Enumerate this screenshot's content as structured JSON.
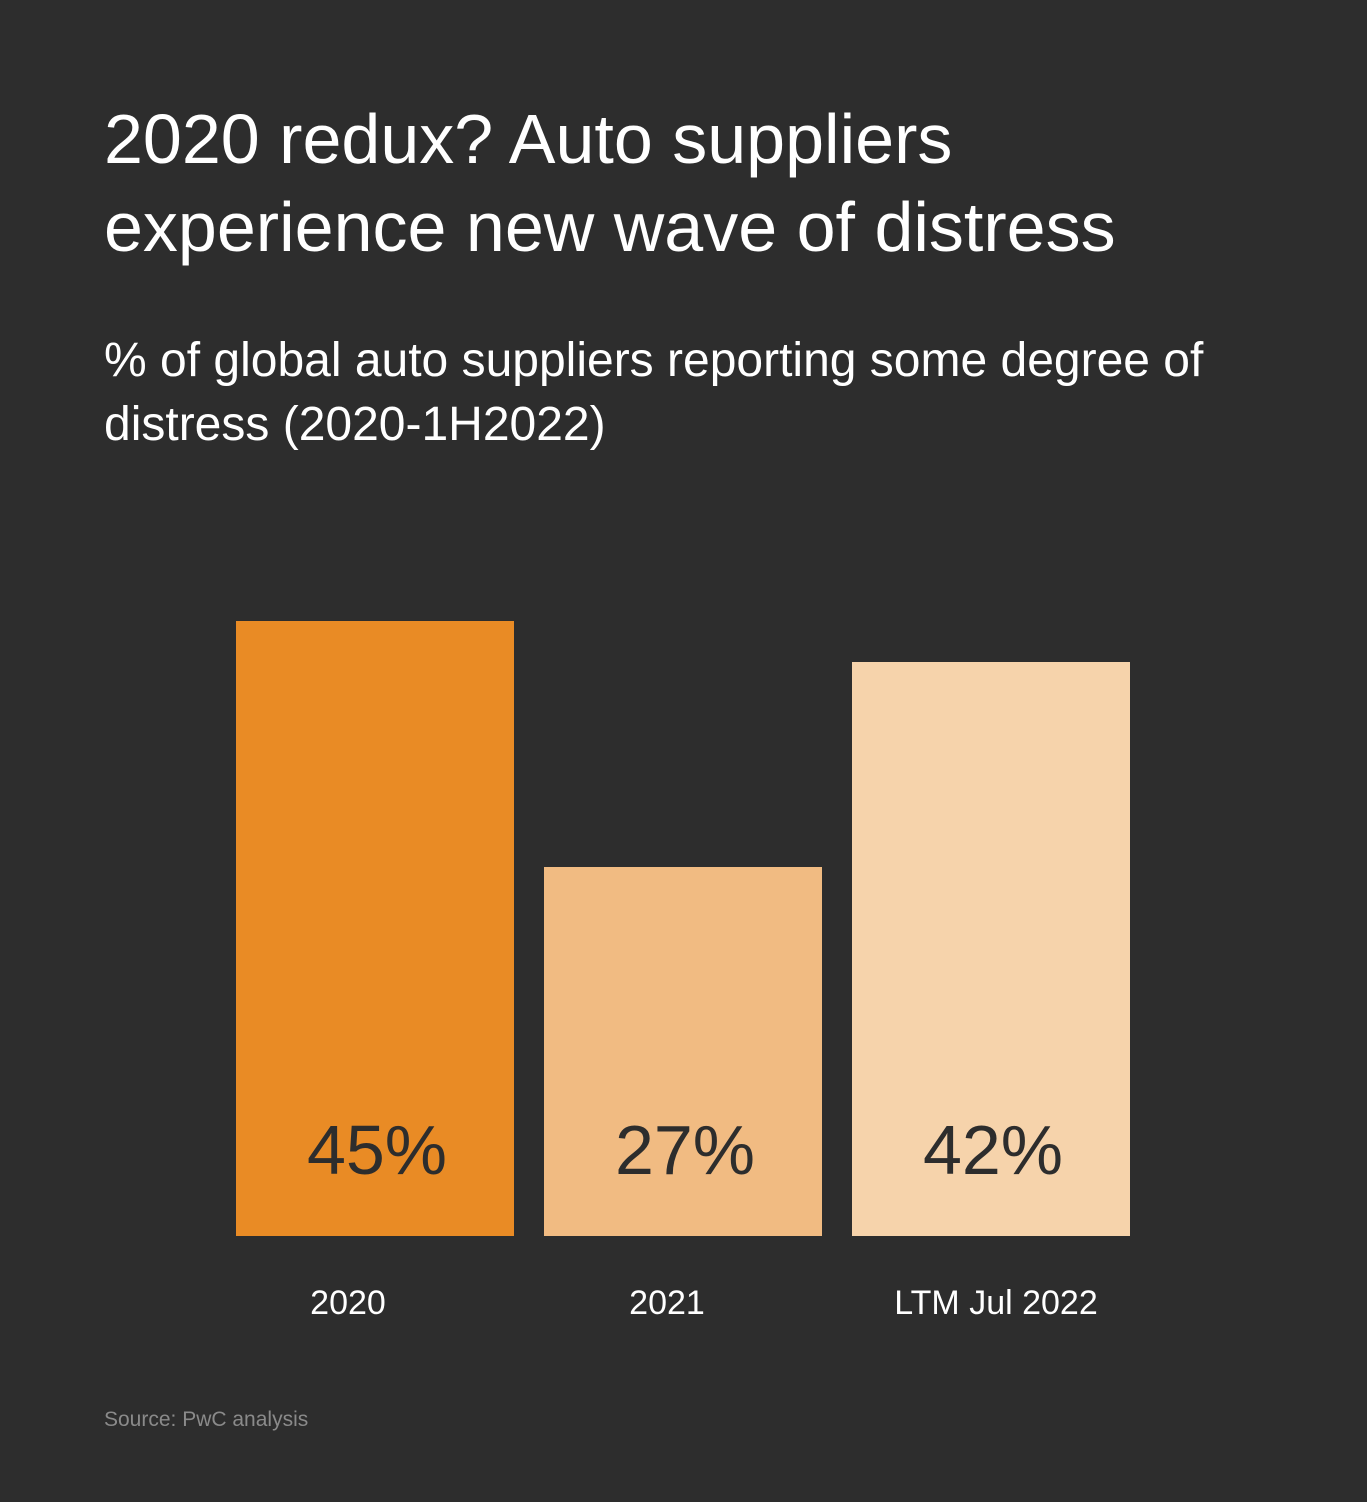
{
  "title": "2020 redux? Auto suppliers experience new wave of distress",
  "subtitle": "% of global auto suppliers reporting some degree of distress (2020-1H2022)",
  "source": "Source: PwC analysis",
  "colors": {
    "background": "#2d2d2d",
    "bar_2020": "#e98b25",
    "bar_2021": "#f1bb82",
    "bar_ltm": "#f6d3ab",
    "value_label": "#2d2d2d",
    "category_label": "#ffffff"
  },
  "chart_data": {
    "type": "bar",
    "categories": [
      "2020",
      "2021",
      "LTM Jul 2022"
    ],
    "values": [
      45,
      27,
      42
    ],
    "value_labels": [
      "45%",
      "27%",
      "42%"
    ],
    "title": "2020 redux? Auto suppliers experience new wave of distress",
    "subtitle": "% of global auto suppliers reporting some degree of distress (2020-1H2022)",
    "xlabel": "",
    "ylabel": "",
    "unit": "%",
    "ylim": [
      0,
      45
    ],
    "grid": false,
    "legend": "none",
    "bar_colors": [
      "#e98b25",
      "#f1bb82",
      "#f6d3ab"
    ]
  }
}
